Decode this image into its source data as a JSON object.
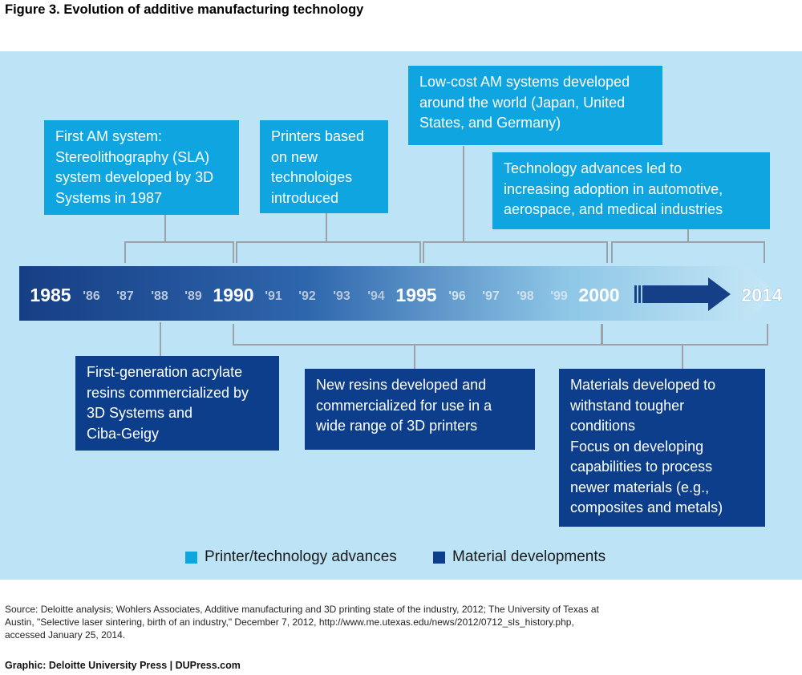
{
  "figure": {
    "title": "Figure 3. Evolution of additive manufacturing technology",
    "colors": {
      "printer_box": "#0ea5e1",
      "material_box": "#0c3e8b",
      "panel_background": "#bce4f6",
      "bracket_line": "#9aa3a8",
      "arrow_dark": "#153f86"
    }
  },
  "timeline": {
    "years": [
      {
        "label": "1985",
        "major": true
      },
      {
        "label": "'86",
        "major": false
      },
      {
        "label": "'87",
        "major": false
      },
      {
        "label": "'88",
        "major": false
      },
      {
        "label": "'89",
        "major": false
      },
      {
        "label": "1990",
        "major": true
      },
      {
        "label": "'91",
        "major": false
      },
      {
        "label": "'92",
        "major": false
      },
      {
        "label": "'93",
        "major": false
      },
      {
        "label": "'94",
        "major": false
      },
      {
        "label": "1995",
        "major": true
      },
      {
        "label": "'96",
        "major": false
      },
      {
        "label": "'97",
        "major": false
      },
      {
        "label": "'98",
        "major": false
      },
      {
        "label": "'99",
        "major": false
      },
      {
        "label": "2000",
        "major": true
      },
      {
        "label": "2014",
        "major": true
      }
    ]
  },
  "printer_events": [
    {
      "lines": [
        "First AM system:",
        "Stereolithography (SLA)",
        "system developed by 3D",
        "Systems in 1987"
      ]
    },
    {
      "lines": [
        "Printers based",
        "on new",
        "technoloiges",
        "introduced"
      ]
    },
    {
      "lines": [
        "Low-cost AM systems developed",
        "around the world (Japan, United",
        "States, and Germany)"
      ]
    },
    {
      "lines": [
        "Technology advances led to",
        "increasing adoption in automotive,",
        "aerospace, and medical industries"
      ]
    }
  ],
  "material_events": [
    {
      "lines": [
        "First-generation acrylate",
        "resins commercialized by",
        "3D Systems and",
        "Ciba-Geigy"
      ]
    },
    {
      "lines": [
        "New resins developed and",
        "commercialized for use in a",
        "wide range of 3D printers"
      ]
    },
    {
      "lines": [
        "Materials developed to",
        "withstand tougher",
        "conditions",
        "Focus on developing",
        "capabilities to process",
        "newer materials (e.g.,",
        "composites and metals)"
      ]
    }
  ],
  "legend": [
    {
      "label": "Printer/technology advances",
      "color": "#0ea5e1"
    },
    {
      "label": "Material developments",
      "color": "#0c3e8b"
    }
  ],
  "source": {
    "lines": [
      "Source: Deloitte analysis; Wohlers Associates, Additive manufacturing and 3D printing state of the industry, 2012; The University of Texas at",
      "Austin, \"Selective laser sintering, birth of an industry,\" December 7, 2012, http://www.me.utexas.edu/news/2012/0712_sls_history.php,",
      "accessed January 25, 2014."
    ]
  },
  "credit": "Graphic: Deloitte University Press  |  DUPress.com"
}
